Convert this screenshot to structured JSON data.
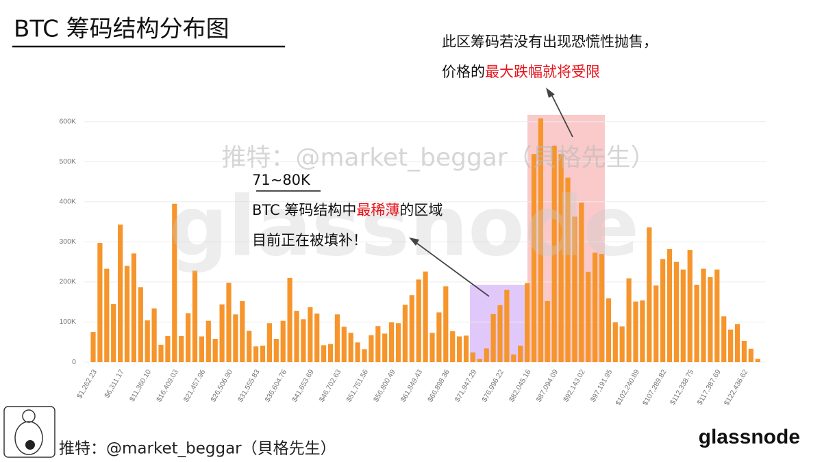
{
  "chart_data": {
    "type": "bar",
    "title": "BTC 筹码结构分布图",
    "color": "#f5952b",
    "grid": true,
    "ylim": [
      0,
      620000
    ],
    "yticks": [
      {
        "value": 0,
        "label": "0"
      },
      {
        "value": 100000,
        "label": "100K"
      },
      {
        "value": 200000,
        "label": "200K"
      },
      {
        "value": 300000,
        "label": "300K"
      },
      {
        "value": 400000,
        "label": "400K"
      },
      {
        "value": 500000,
        "label": "500K"
      },
      {
        "value": 600000,
        "label": "600K"
      }
    ],
    "categories": [
      "$1,262.23",
      null,
      null,
      null,
      "$6,311.17",
      null,
      null,
      null,
      "$11,360.10",
      null,
      null,
      null,
      "$16,409.03",
      null,
      null,
      null,
      "$21,457.96",
      null,
      null,
      null,
      "$26,506.90",
      null,
      null,
      null,
      "$31,555.83",
      null,
      null,
      null,
      "$36,604.76",
      null,
      null,
      null,
      "$41,653.69",
      null,
      null,
      null,
      "$46,702.63",
      null,
      null,
      null,
      "$51,751.56",
      null,
      null,
      null,
      "$56,800.49",
      null,
      null,
      null,
      "$61,849.43",
      null,
      null,
      null,
      "$66,898.36",
      null,
      null,
      null,
      "$71,947.29",
      null,
      null,
      null,
      "$76,996.22",
      null,
      null,
      null,
      "$82,045.16",
      null,
      null,
      null,
      "$87,094.09",
      null,
      null,
      null,
      "$92,143.02",
      null,
      null,
      null,
      "$97,191.95",
      null,
      null,
      null,
      "$102,240.89",
      null,
      null,
      null,
      "$107,289.82",
      null,
      null,
      null,
      "$112,338.75",
      null,
      null,
      null,
      "$117,387.69",
      null,
      null,
      null,
      "$122,436.62",
      null,
      null
    ],
    "values": [
      75000,
      297000,
      233000,
      145000,
      343000,
      240000,
      271000,
      187000,
      104000,
      134000,
      43000,
      65000,
      395000,
      65000,
      122000,
      228000,
      64000,
      103000,
      58000,
      144000,
      198000,
      119000,
      152000,
      78000,
      39000,
      41000,
      97000,
      58000,
      103000,
      210000,
      128000,
      107000,
      137000,
      121000,
      42000,
      45000,
      119000,
      88000,
      73000,
      49000,
      32000,
      67000,
      90000,
      71000,
      99000,
      97000,
      143000,
      167000,
      206000,
      226000,
      73000,
      124000,
      189000,
      77000,
      64000,
      66000,
      24000,
      8000,
      34000,
      120000,
      142000,
      180000,
      19000,
      41000,
      197000,
      519000,
      608000,
      152000,
      540000,
      519000,
      460000,
      363000,
      398000,
      225000,
      273000,
      270000,
      159000,
      99000,
      89000,
      209000,
      151000,
      154000,
      336000,
      191000,
      257000,
      282000,
      250000,
      231000,
      280000,
      193000,
      233000,
      212000,
      231000,
      114000,
      81000,
      95000,
      53000,
      33000,
      8000
    ],
    "annotations": [
      {
        "lines": [
          [
            "此区筹码若没有出现恐慌性抛售，"
          ],
          [
            "价格的",
            {
              "text": "最大跌幅就将受限",
              "color": "#e8141c"
            }
          ]
        ]
      },
      {
        "lines": [
          [
            "71~80K"
          ],
          [
            "BTC 筹码结构中",
            {
              "text": "最稀薄",
              "color": "#e8141c"
            },
            "的区域"
          ],
          [
            "目前正在被填补！"
          ]
        ]
      }
    ],
    "watermark": "推特：@market_beggar（貝格先生）",
    "brand_watermark": "glassnode",
    "footer": "推特：@market_beggar（貝格先生）",
    "brand": "glassnode"
  }
}
